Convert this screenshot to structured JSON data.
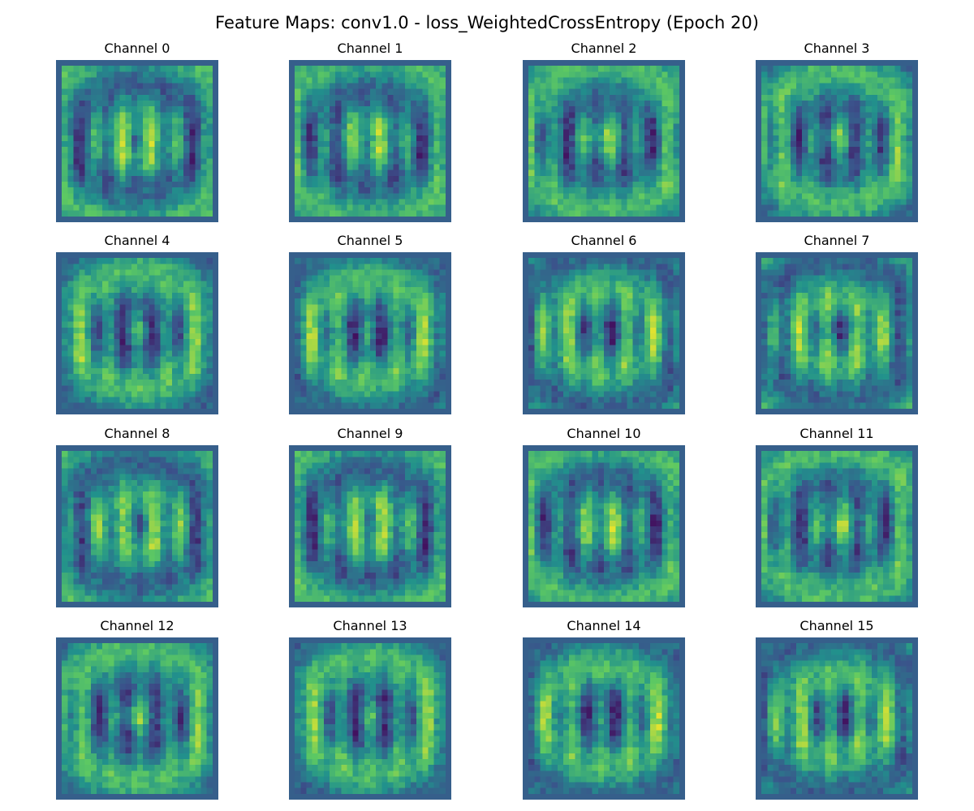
{
  "figure": {
    "title": "Feature Maps: conv1.0 - loss_WeightedCrossEntropy (Epoch 20)"
  },
  "chart_data": {
    "type": "heatmap",
    "colormap": "viridis",
    "grid": "off",
    "axes": "off",
    "layout": {
      "rows": 4,
      "cols": 4
    },
    "panels": [
      {
        "title": "Channel 0"
      },
      {
        "title": "Channel 1"
      },
      {
        "title": "Channel 2"
      },
      {
        "title": "Channel 3"
      },
      {
        "title": "Channel 4"
      },
      {
        "title": "Channel 5"
      },
      {
        "title": "Channel 6"
      },
      {
        "title": "Channel 7"
      },
      {
        "title": "Channel 8"
      },
      {
        "title": "Channel 9"
      },
      {
        "title": "Channel 10"
      },
      {
        "title": "Channel 11"
      },
      {
        "title": "Channel 12"
      },
      {
        "title": "Channel 13"
      },
      {
        "title": "Channel 14"
      },
      {
        "title": "Channel 15"
      }
    ]
  }
}
